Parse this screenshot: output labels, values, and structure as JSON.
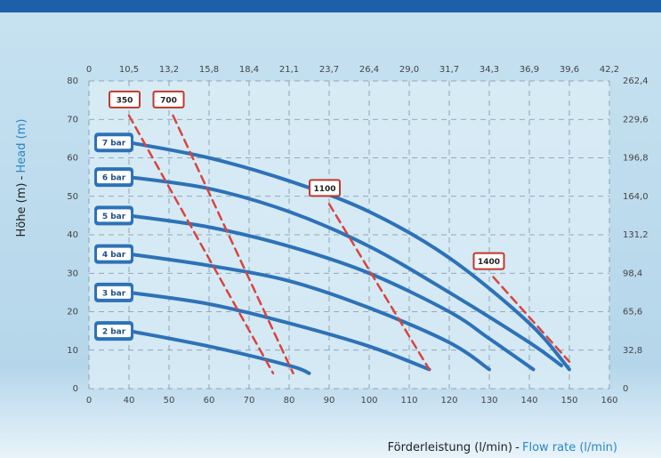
{
  "chart_data": {
    "type": "line",
    "y_label": "Höhe (m)",
    "y_label_sep": "-",
    "y_label_en": "Head (m)",
    "x_label": "Förderleistung (l/min)",
    "x_label_sep": "-",
    "x_label_en": "Flow rate (l/min)",
    "xticks": [
      0,
      40,
      50,
      60,
      70,
      80,
      90,
      100,
      110,
      120,
      130,
      140,
      150,
      160
    ],
    "x2ticks": [
      0,
      {
        "value": 10.5,
        "label": "10,5"
      },
      {
        "value": 13.2,
        "label": "13,2"
      },
      {
        "value": 15.8,
        "label": "15,8"
      },
      {
        "value": 18.4,
        "label": "18,4"
      },
      {
        "value": 21.1,
        "label": "21,1"
      },
      {
        "value": 23.7,
        "label": "23,7"
      },
      {
        "value": 26.4,
        "label": "26,4"
      },
      {
        "value": 29.0,
        "label": "29,0"
      },
      {
        "value": 31.7,
        "label": "31,7"
      },
      {
        "value": 34.3,
        "label": "34,3"
      },
      {
        "value": 36.9,
        "label": "36,9"
      },
      {
        "value": 39.6,
        "label": "39,6"
      },
      {
        "value": 42.2,
        "label": "42,2"
      }
    ],
    "ylim": [
      0,
      80
    ],
    "yticks": [
      0,
      10,
      20,
      30,
      40,
      50,
      60,
      70,
      80
    ],
    "y2lim": [
      0,
      262.4
    ],
    "y2ticks": [
      0,
      {
        "value": 32.8,
        "label": "32,8"
      },
      {
        "value": 65.6,
        "label": "65,6"
      },
      {
        "value": 98.4,
        "label": "98,4"
      },
      {
        "value": 131.2,
        "label": "131,2"
      },
      {
        "value": 164.0,
        "label": "164,0"
      },
      {
        "value": 196.8,
        "label": "196,8"
      },
      {
        "value": 229.6,
        "label": "229,6"
      },
      {
        "value": 262.4,
        "label": "262,4"
      }
    ],
    "grid": true,
    "series": [
      {
        "name": "7 bar",
        "color": "#2d72b8",
        "style": "solid",
        "x": [
          40,
          60,
          80,
          100,
          120,
          140,
          150
        ],
        "values": [
          64,
          60,
          54,
          46,
          34,
          17,
          5
        ]
      },
      {
        "name": "6 bar",
        "color": "#2d72b8",
        "style": "solid",
        "x": [
          40,
          60,
          80,
          100,
          120,
          140,
          148
        ],
        "values": [
          55,
          52,
          46,
          37,
          25,
          12,
          6
        ]
      },
      {
        "name": "5 bar",
        "color": "#2d72b8",
        "style": "solid",
        "x": [
          40,
          60,
          80,
          100,
          120,
          130,
          141
        ],
        "values": [
          45,
          42,
          37,
          30,
          20,
          13,
          5
        ]
      },
      {
        "name": "4 bar",
        "color": "#2d72b8",
        "style": "solid",
        "x": [
          40,
          60,
          80,
          100,
          120,
          130
        ],
        "values": [
          35,
          32,
          28,
          21,
          12,
          5
        ]
      },
      {
        "name": "3 bar",
        "color": "#2d72b8",
        "style": "solid",
        "x": [
          40,
          60,
          80,
          100,
          115
        ],
        "values": [
          25,
          22,
          17,
          11,
          5
        ]
      },
      {
        "name": "2 bar",
        "color": "#2d72b8",
        "style": "solid",
        "x": [
          40,
          60,
          80,
          85
        ],
        "values": [
          15,
          11,
          6,
          4
        ]
      },
      {
        "name": "350",
        "color": "#d9443e",
        "style": "dashed",
        "x": [
          40,
          76
        ],
        "values": [
          71,
          4
        ]
      },
      {
        "name": "700",
        "color": "#d9443e",
        "style": "dashed",
        "x": [
          51,
          81
        ],
        "values": [
          71,
          4
        ]
      },
      {
        "name": "1100",
        "color": "#d9443e",
        "style": "dashed",
        "x": [
          90,
          115
        ],
        "values": [
          48,
          5
        ]
      },
      {
        "name": "1400",
        "color": "#d9443e",
        "style": "dashed",
        "x": [
          131,
          150
        ],
        "values": [
          29,
          7
        ]
      }
    ]
  }
}
